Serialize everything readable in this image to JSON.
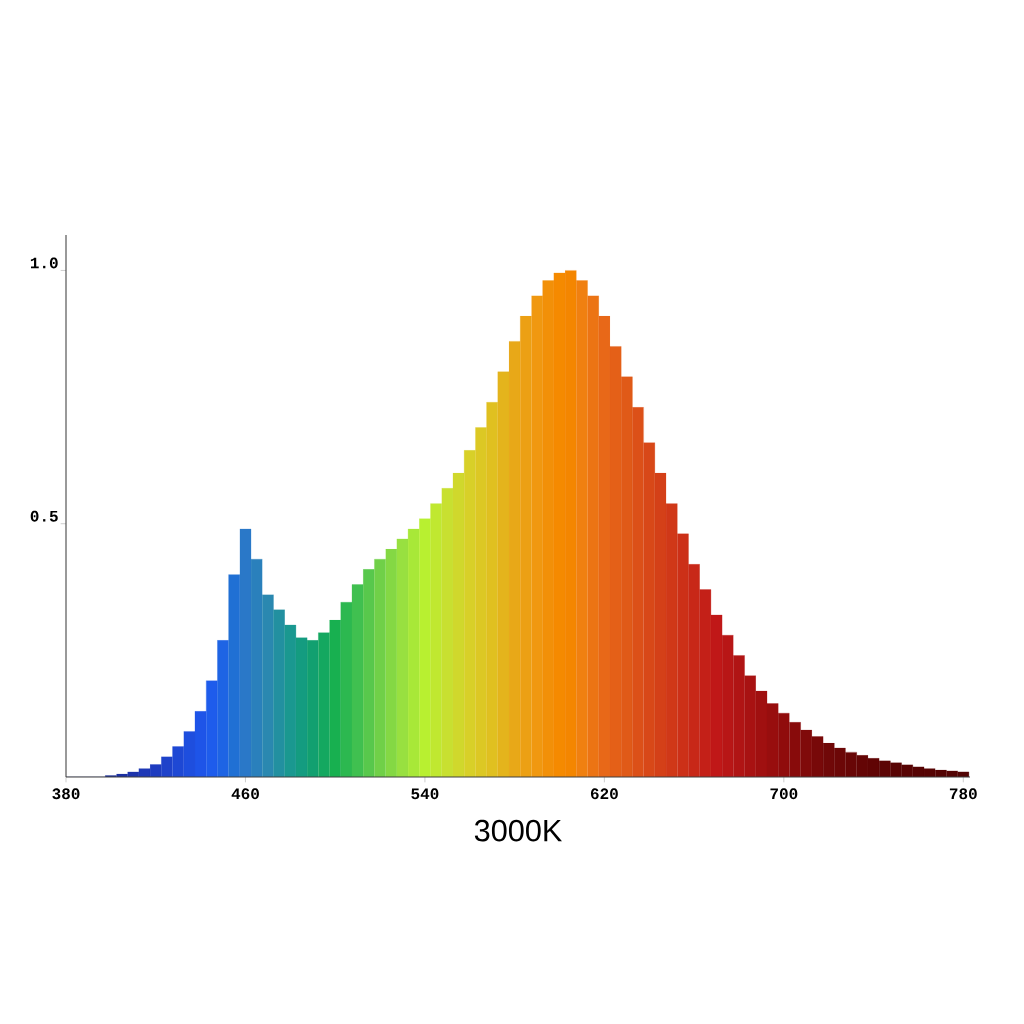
{
  "chart_data": {
    "type": "bar",
    "title": "3000K",
    "x": [
      380,
      385,
      390,
      395,
      400,
      405,
      410,
      415,
      420,
      425,
      430,
      435,
      440,
      445,
      450,
      455,
      460,
      465,
      470,
      475,
      480,
      485,
      490,
      495,
      500,
      505,
      510,
      515,
      520,
      525,
      530,
      535,
      540,
      545,
      550,
      555,
      560,
      565,
      570,
      575,
      580,
      585,
      590,
      595,
      600,
      605,
      610,
      615,
      620,
      625,
      630,
      635,
      640,
      645,
      650,
      655,
      660,
      665,
      670,
      675,
      680,
      685,
      690,
      695,
      700,
      705,
      710,
      715,
      720,
      725,
      730,
      735,
      740,
      745,
      750,
      755,
      760,
      765,
      770,
      775,
      780
    ],
    "values": [
      0,
      0,
      0,
      0,
      0.003,
      0.006,
      0.01,
      0.017,
      0.025,
      0.04,
      0.06,
      0.09,
      0.13,
      0.19,
      0.27,
      0.4,
      0.49,
      0.43,
      0.36,
      0.33,
      0.3,
      0.275,
      0.27,
      0.285,
      0.31,
      0.345,
      0.38,
      0.41,
      0.43,
      0.45,
      0.47,
      0.49,
      0.51,
      0.54,
      0.57,
      0.6,
      0.645,
      0.69,
      0.74,
      0.8,
      0.86,
      0.91,
      0.95,
      0.98,
      0.995,
      1.0,
      0.98,
      0.95,
      0.91,
      0.85,
      0.79,
      0.73,
      0.66,
      0.6,
      0.54,
      0.48,
      0.42,
      0.37,
      0.32,
      0.28,
      0.24,
      0.2,
      0.17,
      0.145,
      0.126,
      0.108,
      0.093,
      0.08,
      0.067,
      0.057,
      0.049,
      0.043,
      0.037,
      0.032,
      0.028,
      0.024,
      0.02,
      0.017,
      0.014,
      0.012,
      0.01
    ],
    "colors": [
      "#14207a",
      "#14207a",
      "#162484",
      "#18288e",
      "#1a2c98",
      "#1c30a2",
      "#1e34ac",
      "#1e38b6",
      "#1e3cc0",
      "#1e42ca",
      "#1e48d4",
      "#1e4ede",
      "#1e54e8",
      "#1e5cec",
      "#1e64e4",
      "#2070d4",
      "#2a78c8",
      "#2a80bc",
      "#2a88b0",
      "#2290a0",
      "#1a9890",
      "#149c80",
      "#12a070",
      "#14a860",
      "#18b050",
      "#2cb850",
      "#40c050",
      "#58c84c",
      "#70d048",
      "#84d844",
      "#98e040",
      "#a8e838",
      "#b8f030",
      "#c0e830",
      "#c8e030",
      "#d0d82c",
      "#d8d028",
      "#dcc824",
      "#e0c020",
      "#e4b41c",
      "#e8a818",
      "#eca014",
      "#f09810",
      "#f29008",
      "#f58a00",
      "#f48600",
      "#f08010",
      "#ec7414",
      "#e86818",
      "#e46018",
      "#e05a18",
      "#dc5018",
      "#d84818",
      "#d44018",
      "#d03818",
      "#cc3018",
      "#c82818",
      "#c42018",
      "#c01818",
      "#b81616",
      "#b01414",
      "#a81212",
      "#a01010",
      "#980e0e",
      "#900c0c",
      "#880b0b",
      "#800a0a",
      "#780909",
      "#700808",
      "#6c0707",
      "#680606",
      "#640505",
      "#600404",
      "#5c0404",
      "#580404",
      "#580404",
      "#560404",
      "#560404",
      "#540404",
      "#540404",
      "#520404"
    ],
    "xlim": [
      380,
      783
    ],
    "ylim": [
      0,
      1.07
    ],
    "xticks": [
      380,
      460,
      540,
      620,
      700,
      780
    ],
    "yticks": [
      {
        "value": 0.5,
        "label": "0.5"
      },
      {
        "value": 1,
        "label": "1.0"
      }
    ]
  }
}
